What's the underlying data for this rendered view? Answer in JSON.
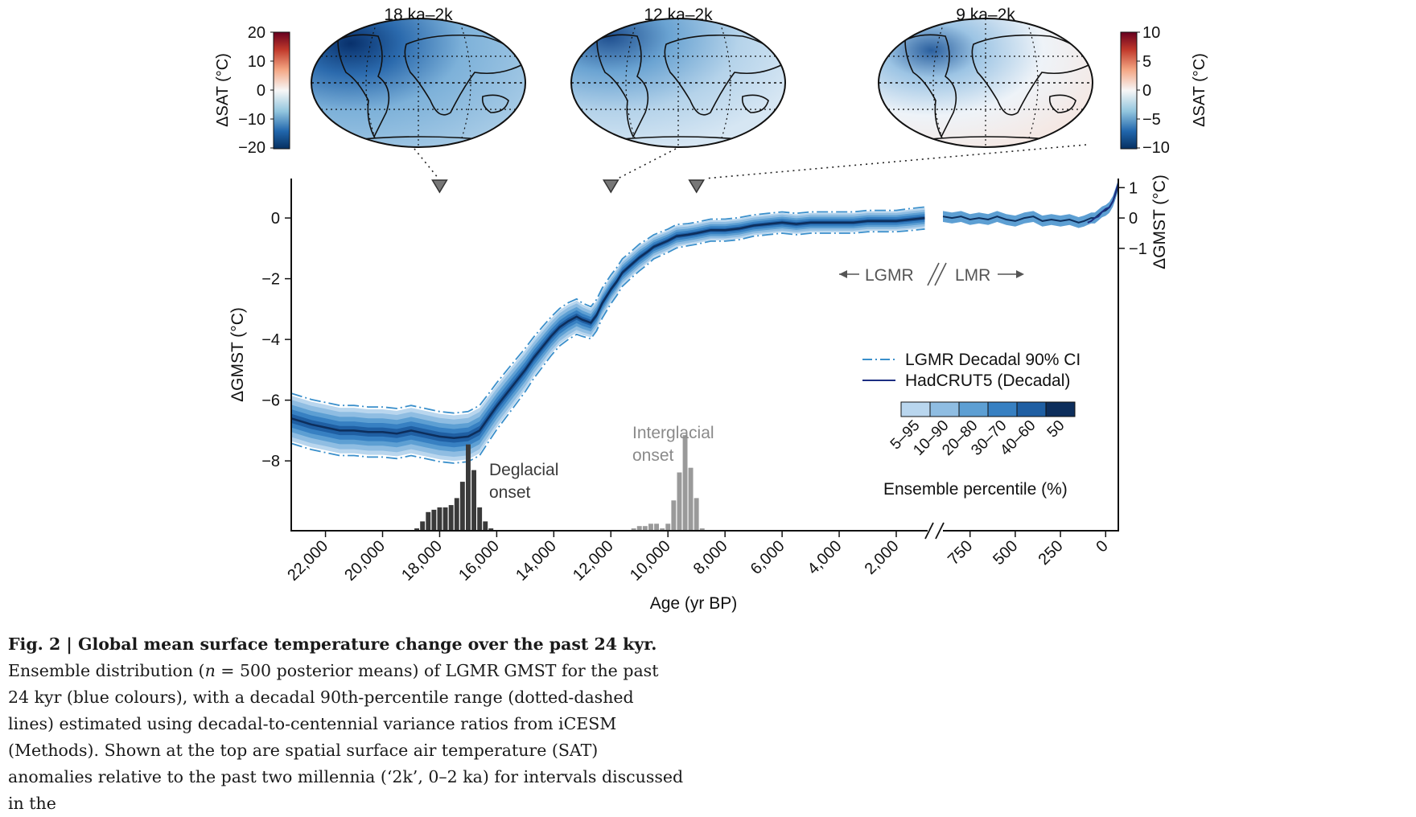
{
  "maps": [
    {
      "title": "18 ka–2k"
    },
    {
      "title": "12 ka–2k"
    },
    {
      "title": "9 ka–2k"
    }
  ],
  "colorbar_left": {
    "label": "ΔSAT (°C)",
    "ticks": [
      "20",
      "10",
      "0",
      "−10",
      "−20"
    ]
  },
  "colorbar_right": {
    "label": "ΔSAT (°C)",
    "ticks": [
      "10",
      "5",
      "0",
      "−5",
      "−10"
    ]
  },
  "main_axes": {
    "ylabel": "ΔGMST (°C)",
    "xlabel": "Age (yr BP)",
    "right_ylabel": "ΔGMST (°C)",
    "left_yticks": [
      "0",
      "−2",
      "−4",
      "−6",
      "−8"
    ],
    "right_yticks": [
      "1",
      "0",
      "−1"
    ],
    "xticks_lgmr": [
      "22,000",
      "20,000",
      "18,000",
      "16,000",
      "14,000",
      "12,000",
      "10,000",
      "8,000",
      "6,000",
      "4,000",
      "2,000"
    ],
    "xticks_lmr": [
      "750",
      "500",
      "250",
      "0"
    ]
  },
  "annotations": {
    "lgmr": "LGMR",
    "lmr": "LMR",
    "deglacial_line1": "Deglacial",
    "deglacial_line2": "onset",
    "interglacial_line1": "Interglacial",
    "interglacial_line2": "onset"
  },
  "legend": {
    "ci": "LGMR Decadal 90% CI",
    "hadcrut": "HadCRUT5 (Decadal)",
    "percentile_title": "Ensemble percentile (%)",
    "percentile_labels": [
      "5–95",
      "10–90",
      "20–80",
      "30–70",
      "40–60",
      "50"
    ]
  },
  "colors": {
    "band": [
      "#b9d6ee",
      "#8fbde2",
      "#5d9fd3",
      "#3780c2",
      "#1f5fa3",
      "#0d2e5c"
    ],
    "ci_line": "#3a8fcb",
    "hadcrut": "#1c2e82",
    "deglacial_hist": "#3a3a3a",
    "interglacial_hist": "#9a9a9a"
  },
  "chart_data": {
    "type": "line",
    "xlabel": "Age (yr BP)",
    "ylabel": "ΔGMST (°C)",
    "ylim": [
      -10.3,
      1.3
    ],
    "xlim_lgmr": [
      23200,
      900
    ],
    "xlim_lmr": [
      900,
      -70
    ],
    "series": [
      {
        "name": "LGMR",
        "x": [
          23200,
          22500,
          22000,
          21500,
          21000,
          20500,
          20000,
          19500,
          19000,
          18500,
          18000,
          17500,
          17000,
          16600,
          16300,
          16000,
          15500,
          15000,
          14700,
          14400,
          14100,
          13800,
          13500,
          13200,
          13000,
          12700,
          12500,
          12300,
          12000,
          11800,
          11600,
          11300,
          11000,
          10700,
          10500,
          10000,
          9700,
          9300,
          9000,
          8500,
          8000,
          7500,
          7000,
          6500,
          6000,
          5500,
          5000,
          4500,
          4000,
          3500,
          3000,
          2500,
          2000,
          1500,
          1000
        ],
        "median": [
          -6.6,
          -6.8,
          -6.9,
          -7.0,
          -7.0,
          -7.05,
          -7.05,
          -7.1,
          -7.0,
          -7.1,
          -7.2,
          -7.25,
          -7.2,
          -7.0,
          -6.6,
          -6.2,
          -5.6,
          -5.0,
          -4.6,
          -4.25,
          -3.9,
          -3.6,
          -3.4,
          -3.25,
          -3.35,
          -3.45,
          -3.2,
          -2.8,
          -2.35,
          -2.1,
          -1.8,
          -1.55,
          -1.3,
          -1.1,
          -0.95,
          -0.75,
          -0.6,
          -0.55,
          -0.5,
          -0.4,
          -0.4,
          -0.35,
          -0.25,
          -0.2,
          -0.15,
          -0.2,
          -0.15,
          -0.15,
          -0.15,
          -0.15,
          -0.1,
          -0.1,
          -0.1,
          -0.05,
          0.0
        ],
        "ci_half_width": [
          0.75,
          0.75,
          0.75,
          0.75,
          0.75,
          0.75,
          0.75,
          0.75,
          0.75,
          0.75,
          0.75,
          0.75,
          0.75,
          0.75,
          0.72,
          0.7,
          0.68,
          0.65,
          0.62,
          0.6,
          0.58,
          0.56,
          0.55,
          0.53,
          0.5,
          0.48,
          0.47,
          0.45,
          0.43,
          0.42,
          0.41,
          0.4,
          0.4,
          0.38,
          0.36,
          0.35,
          0.35,
          0.33,
          0.33,
          0.33,
          0.33,
          0.33,
          0.32,
          0.32,
          0.32,
          0.32,
          0.32,
          0.32,
          0.32,
          0.32,
          0.32,
          0.32,
          0.32,
          0.33,
          0.33
        ]
      },
      {
        "name": "LMR",
        "x": [
          900,
          850,
          800,
          750,
          700,
          650,
          600,
          550,
          500,
          450,
          400,
          350,
          300,
          250,
          200,
          150,
          120,
          100,
          80,
          60,
          40,
          20,
          0,
          -20,
          -40,
          -60,
          -70
        ],
        "values": [
          0.05,
          0.0,
          0.05,
          -0.05,
          0.0,
          -0.05,
          0.05,
          -0.05,
          -0.1,
          0.0,
          0.05,
          -0.1,
          -0.05,
          -0.1,
          -0.05,
          -0.15,
          -0.1,
          -0.05,
          0.0,
          0.0,
          0.1,
          0.2,
          0.25,
          0.35,
          0.55,
          0.9,
          1.1
        ]
      },
      {
        "name": "HadCRUT5 (Decadal)",
        "x": [
          100,
          80,
          60,
          40,
          20,
          0,
          -20,
          -40,
          -60,
          -70
        ],
        "values": [
          -0.15,
          -0.1,
          0.0,
          0.05,
          0.2,
          0.3,
          0.35,
          0.55,
          0.95,
          1.15
        ]
      }
    ],
    "histograms": [
      {
        "name": "Deglacial onset",
        "bin_width": 200,
        "x": [
          18800,
          18600,
          18400,
          18200,
          18000,
          17800,
          17600,
          17400,
          17200,
          17000,
          16800,
          16600,
          16400,
          16200
        ],
        "counts": [
          1,
          4,
          8,
          9,
          10,
          10,
          11,
          14,
          21,
          37,
          26,
          10,
          4,
          1
        ]
      },
      {
        "name": "Interglacial onset",
        "bin_width": 200,
        "x": [
          11200,
          11000,
          10800,
          10600,
          10400,
          10200,
          10000,
          9800,
          9600,
          9400,
          9200,
          9000,
          8800
        ],
        "counts": [
          1,
          2,
          2,
          3,
          3,
          1,
          3,
          13,
          25,
          41,
          27,
          14,
          1
        ]
      }
    ],
    "markers_years_bp": [
      18000,
      12000,
      9000
    ]
  }
}
